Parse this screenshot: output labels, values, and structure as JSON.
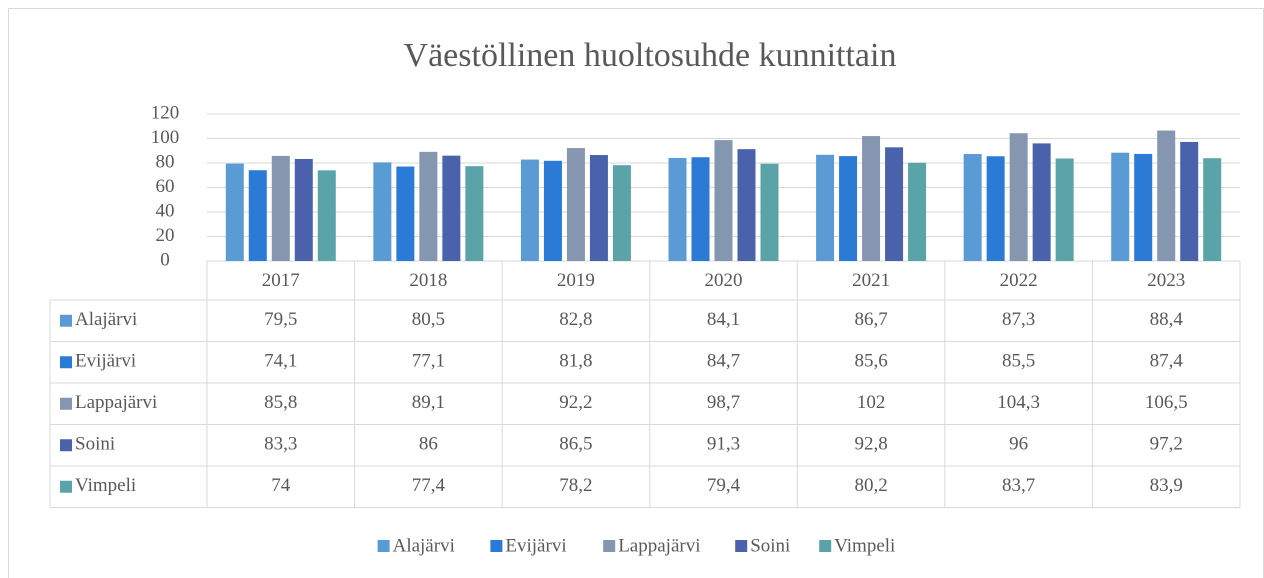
{
  "chart_data": {
    "type": "bar",
    "title": "Väestöllinen huoltosuhde kunnittain",
    "categories": [
      "2017",
      "2018",
      "2019",
      "2020",
      "2021",
      "2022",
      "2023"
    ],
    "ylim": [
      0,
      120
    ],
    "yticks": [
      0,
      20,
      40,
      60,
      80,
      100,
      120
    ],
    "grid": true,
    "legend": "bottom",
    "series": [
      {
        "name": "Alajärvi",
        "color": "#5b9bd5",
        "values": [
          79.5,
          80.5,
          82.8,
          84.1,
          86.7,
          87.3,
          88.4
        ],
        "value_labels": [
          "79,5",
          "80,5",
          "82,8",
          "84,1",
          "86,7",
          "87,3",
          "88,4"
        ]
      },
      {
        "name": "Evijärvi",
        "color": "#2a7ad6",
        "values": [
          74.1,
          77.1,
          81.8,
          84.7,
          85.6,
          85.5,
          87.4
        ],
        "value_labels": [
          "74,1",
          "77,1",
          "81,8",
          "84,7",
          "85,6",
          "85,5",
          "87,4"
        ]
      },
      {
        "name": "Lappajärvi",
        "color": "#8496b0",
        "values": [
          85.8,
          89.1,
          92.2,
          98.7,
          102,
          104.3,
          106.5
        ],
        "value_labels": [
          "85,8",
          "89,1",
          "92,2",
          "98,7",
          "102",
          "104,3",
          "106,5"
        ]
      },
      {
        "name": "Soini",
        "color": "#4a62ac",
        "values": [
          83.3,
          86,
          86.5,
          91.3,
          92.8,
          96,
          97.2
        ],
        "value_labels": [
          "83,3",
          "86",
          "86,5",
          "91,3",
          "92,8",
          "96",
          "97,2"
        ]
      },
      {
        "name": "Vimpeli",
        "color": "#5aa3a8",
        "values": [
          74,
          77.4,
          78.2,
          79.4,
          80.2,
          83.7,
          83.9
        ],
        "value_labels": [
          "74",
          "77,4",
          "78,2",
          "79,4",
          "80,2",
          "83,7",
          "83,9"
        ]
      }
    ]
  }
}
